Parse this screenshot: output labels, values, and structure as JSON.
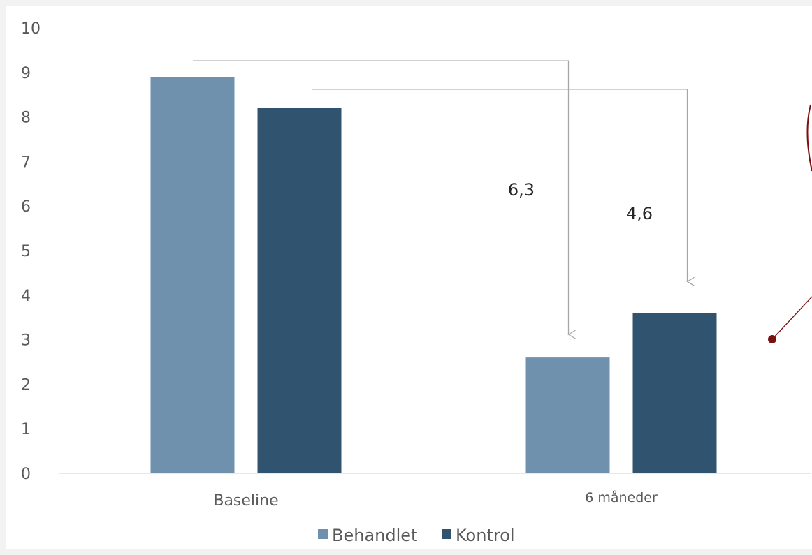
{
  "chart_data": {
    "type": "bar",
    "categories": [
      "Baseline",
      "6 måneder"
    ],
    "series": [
      {
        "name": "Behandlet",
        "values": [
          8.9,
          2.6
        ],
        "color": "#6f91ae"
      },
      {
        "name": "Kontrol",
        "values": [
          8.2,
          3.6
        ],
        "color": "#30536f"
      }
    ],
    "ylim": [
      0,
      10
    ],
    "yticks": [
      "0",
      "1",
      "2",
      "3",
      "4",
      "5",
      "6",
      "7",
      "8",
      "9",
      "10"
    ],
    "grid": false,
    "legend": "bottom",
    "annotations": [
      {
        "label": "6,3",
        "series": "Behandlet",
        "from": "Baseline",
        "to": "6 måneder"
      },
      {
        "label": "4,6",
        "series": "Kontrol",
        "from": "Baseline",
        "to": "6 måneder"
      }
    ],
    "colors": {
      "axis": "#d9d9d9",
      "arrow": "#a6a6a6",
      "callout": "#7a1010"
    }
  }
}
